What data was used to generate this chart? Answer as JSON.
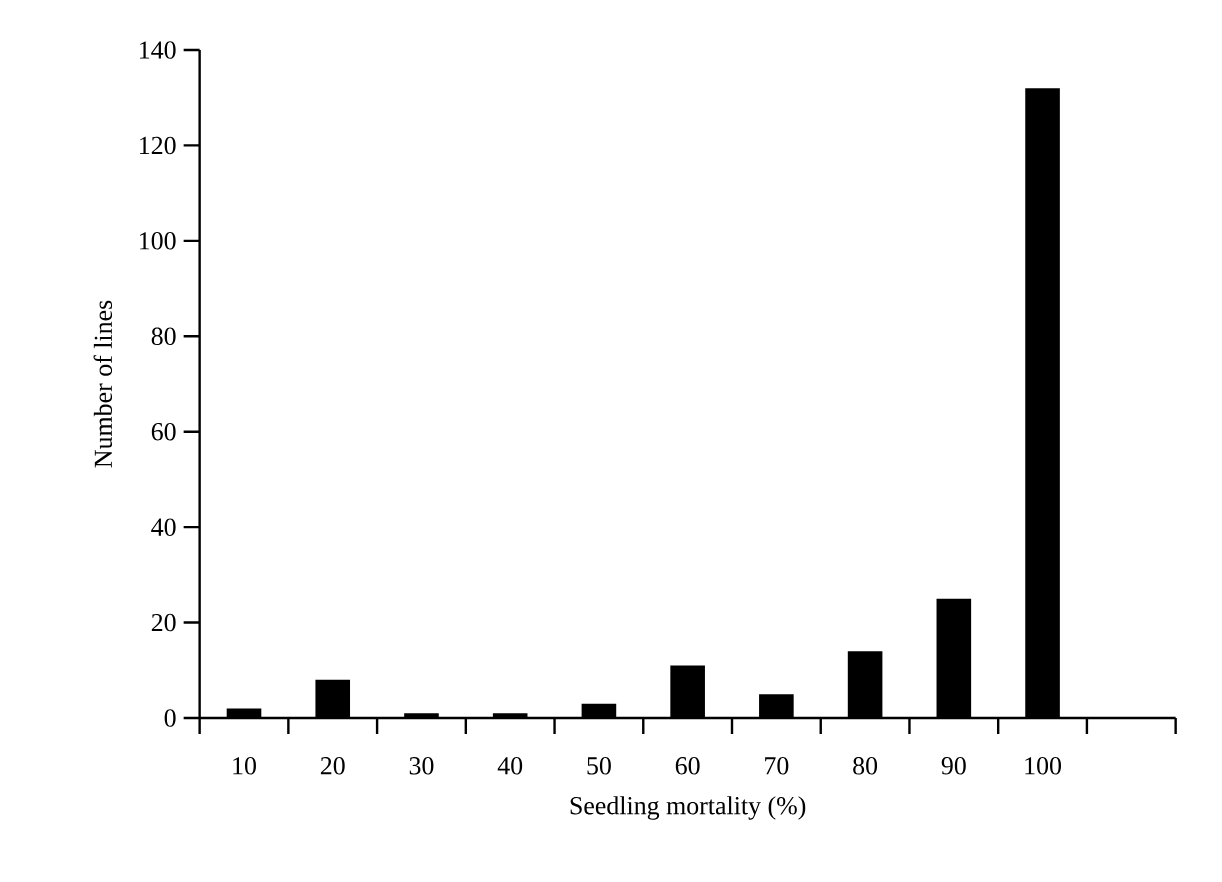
{
  "chart_data": {
    "type": "bar",
    "xlabel": "Seedling mortality (%)",
    "ylabel": "Number of lines",
    "categories": [
      "10",
      "20",
      "30",
      "40",
      "50",
      "60",
      "70",
      "80",
      "90",
      "100",
      null
    ],
    "values": [
      2,
      8,
      1,
      1,
      3,
      11,
      5,
      14,
      25,
      132,
      null
    ],
    "color": "#000000",
    "ylim": [
      0,
      140
    ],
    "yticks": [
      0,
      20,
      40,
      60,
      80,
      100,
      120,
      140
    ],
    "grid": false
  }
}
